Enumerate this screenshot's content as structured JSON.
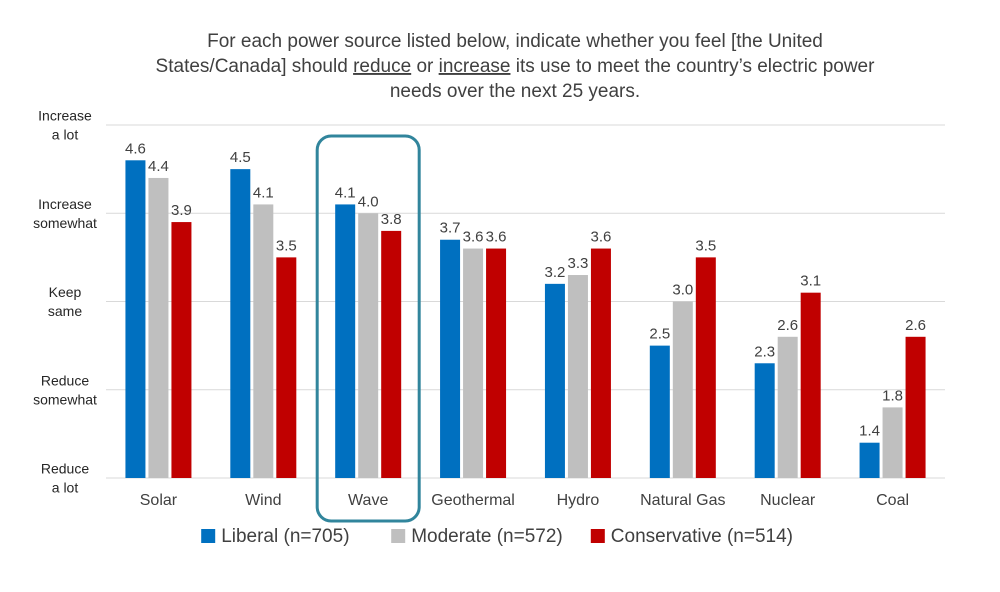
{
  "chart_data": {
    "type": "bar",
    "title_lines": [
      [
        {
          "t": "For each power source listed below, indicate whether you feel [the United"
        }
      ],
      [
        {
          "t": "States/Canada] should "
        },
        {
          "t": "reduce",
          "u": true
        },
        {
          "t": " or "
        },
        {
          "t": "increase",
          "u": true
        },
        {
          "t": " its use to meet the country’s electric power"
        }
      ],
      [
        {
          "t": "needs over the next 25 years."
        }
      ]
    ],
    "categories": [
      "Solar",
      "Wind",
      "Wave",
      "Geothermal",
      "Hydro",
      "Natural Gas",
      "Nuclear",
      "Coal"
    ],
    "series": [
      {
        "name": "Liberal (n=705)",
        "color": "#0070C0",
        "values": [
          4.6,
          4.5,
          4.1,
          3.7,
          3.2,
          2.5,
          2.3,
          1.4
        ]
      },
      {
        "name": "Moderate (n=572)",
        "color": "#BFBFBF",
        "values": [
          4.4,
          4.1,
          4.0,
          3.6,
          3.3,
          3.0,
          2.6,
          1.8
        ]
      },
      {
        "name": "Conservative (n=514)",
        "color": "#C00000",
        "values": [
          3.9,
          3.5,
          3.8,
          3.6,
          3.6,
          3.5,
          3.1,
          2.6
        ]
      }
    ],
    "ylim": [
      1,
      5
    ],
    "yticks": [
      {
        "value": 5,
        "lines": [
          "Increase",
          "a lot"
        ]
      },
      {
        "value": 4,
        "lines": [
          "Increase",
          "somewhat"
        ]
      },
      {
        "value": 3,
        "lines": [
          "Keep",
          "same"
        ]
      },
      {
        "value": 2,
        "lines": [
          "Reduce",
          "somewhat"
        ]
      },
      {
        "value": 1,
        "lines": [
          "Reduce",
          "a lot"
        ]
      }
    ],
    "grid": true,
    "highlight_category": "Wave",
    "highlight_color": "#31859C",
    "legend_position": "bottom"
  }
}
